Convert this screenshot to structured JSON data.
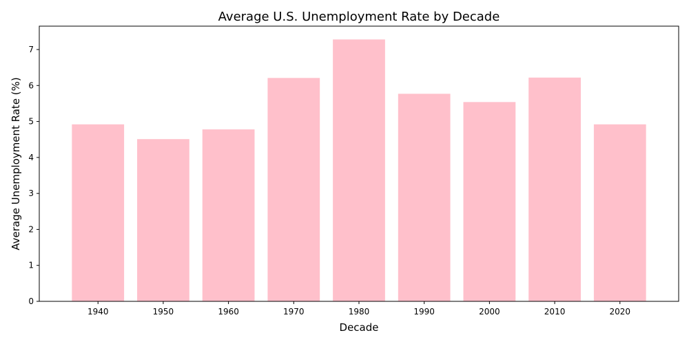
{
  "chart_data": {
    "type": "bar",
    "title": "Average U.S. Unemployment Rate by Decade",
    "xlabel": "Decade",
    "ylabel": "Average Unemployment Rate (%)",
    "categories": [
      "1940",
      "1950",
      "1960",
      "1970",
      "1980",
      "1990",
      "2000",
      "2010",
      "2020"
    ],
    "values": [
      4.92,
      4.51,
      4.78,
      6.21,
      7.28,
      5.77,
      5.54,
      6.22,
      4.92
    ],
    "ylim": [
      0,
      7.65
    ],
    "yticks": [
      "0",
      "1",
      "2",
      "3",
      "4",
      "5",
      "6",
      "7"
    ],
    "grid": false,
    "legend": "none",
    "colors": {
      "bar": "#ffc0cb",
      "axis": "#000000",
      "background": "#ffffff"
    }
  }
}
